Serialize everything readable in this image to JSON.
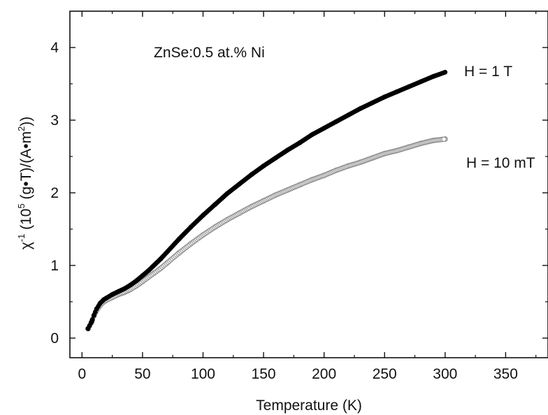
{
  "chart_data": {
    "type": "scatter",
    "annotation": "ZnSe:0.5 at.% Ni",
    "xlabel": "Temperature (K)",
    "ylabel": {
      "prefix": "χ",
      "prefix_sup": "-1",
      "open": " (10",
      "exp": "5",
      "mid": " (g•T)/(A•m",
      "exp2": "2",
      "close": "))"
    },
    "xlim": [
      -10,
      385
    ],
    "ylim": [
      -0.27,
      4.5
    ],
    "xticks": [
      0,
      50,
      100,
      150,
      200,
      250,
      300,
      350
    ],
    "yticks": [
      0,
      1,
      2,
      3,
      4
    ],
    "grid": false,
    "series": [
      {
        "name": "H = 1 T",
        "marker": "filled-circle",
        "color": "#000000",
        "x": [
          5,
          8,
          10,
          12,
          15,
          18,
          20,
          25,
          30,
          35,
          40,
          45,
          50,
          55,
          60,
          65,
          70,
          80,
          90,
          100,
          110,
          120,
          130,
          140,
          150,
          160,
          170,
          180,
          190,
          200,
          210,
          220,
          230,
          240,
          250,
          260,
          270,
          280,
          290,
          300
        ],
        "y": [
          0.13,
          0.23,
          0.32,
          0.4,
          0.48,
          0.53,
          0.55,
          0.6,
          0.64,
          0.68,
          0.73,
          0.79,
          0.86,
          0.93,
          1.01,
          1.09,
          1.18,
          1.36,
          1.53,
          1.69,
          1.84,
          1.99,
          2.12,
          2.25,
          2.37,
          2.48,
          2.59,
          2.69,
          2.8,
          2.89,
          2.98,
          3.07,
          3.16,
          3.24,
          3.32,
          3.39,
          3.46,
          3.53,
          3.6,
          3.66
        ]
      },
      {
        "name": "H = 10 mT",
        "marker": "open-circle",
        "color": "#8a8a8a",
        "x": [
          5,
          8,
          10,
          12,
          15,
          18,
          20,
          25,
          30,
          35,
          40,
          45,
          50,
          55,
          60,
          65,
          70,
          80,
          90,
          100,
          110,
          120,
          130,
          140,
          150,
          160,
          170,
          180,
          190,
          200,
          210,
          220,
          230,
          240,
          250,
          260,
          270,
          280,
          290,
          300
        ],
        "y": [
          0.13,
          0.22,
          0.31,
          0.38,
          0.45,
          0.5,
          0.52,
          0.56,
          0.6,
          0.63,
          0.67,
          0.72,
          0.78,
          0.84,
          0.9,
          0.96,
          1.03,
          1.17,
          1.3,
          1.42,
          1.53,
          1.63,
          1.72,
          1.81,
          1.89,
          1.97,
          2.04,
          2.11,
          2.18,
          2.24,
          2.31,
          2.37,
          2.42,
          2.48,
          2.54,
          2.58,
          2.63,
          2.68,
          2.72,
          2.74
        ]
      }
    ]
  }
}
